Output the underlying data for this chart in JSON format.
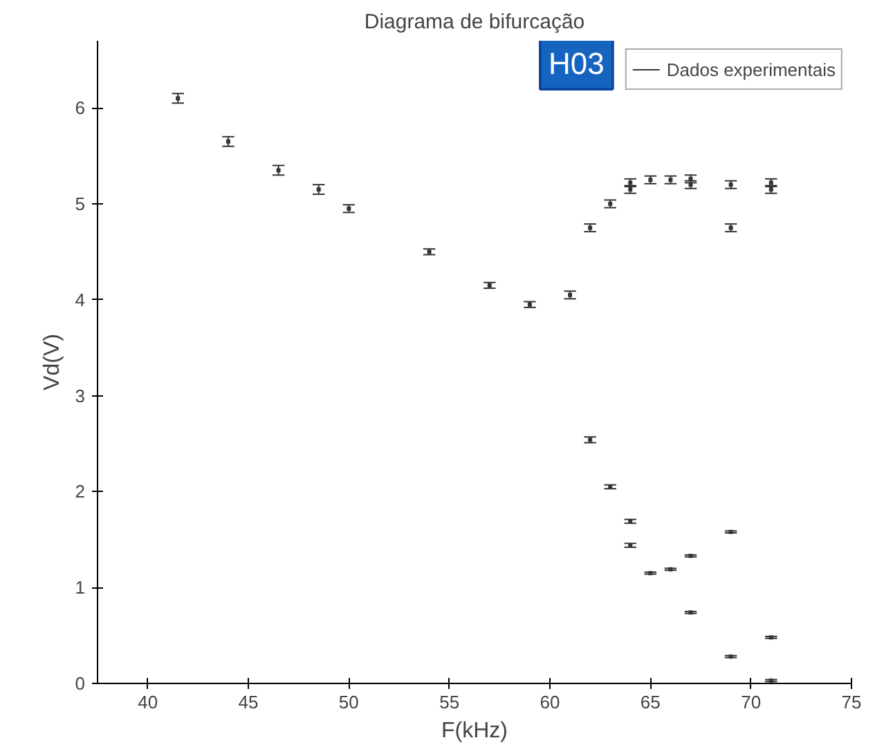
{
  "chart_data": {
    "type": "scatter",
    "title": "Diagrama de bifurcação",
    "xlabel": "F(kHz)",
    "ylabel": "Vd(V)",
    "xlim": [
      37.5,
      75
    ],
    "ylim": [
      0,
      6.7
    ],
    "xticks": [
      40,
      45,
      50,
      55,
      60,
      65,
      70,
      75
    ],
    "yticks": [
      0,
      1,
      2,
      3,
      4,
      5,
      6
    ],
    "grid": false,
    "legend": "top right",
    "marker": "square",
    "annotations": [
      "H03"
    ],
    "series": [
      {
        "name": "Dados experimentais",
        "color": "#333333",
        "x": [
          41.5,
          44,
          46.5,
          48.5,
          50,
          54,
          57,
          59,
          61,
          62,
          63,
          64,
          64,
          65,
          66,
          67,
          67,
          69,
          69,
          71,
          71,
          62,
          63,
          64,
          64,
          65,
          66,
          67,
          67,
          69,
          69,
          71,
          71
        ],
        "values": [
          6.1,
          5.65,
          5.35,
          5.15,
          4.95,
          4.5,
          4.15,
          3.95,
          4.05,
          4.75,
          5.0,
          5.15,
          5.22,
          5.25,
          5.25,
          5.2,
          5.26,
          5.2,
          4.75,
          5.15,
          5.22,
          2.54,
          2.05,
          1.69,
          1.44,
          1.15,
          1.19,
          1.33,
          0.74,
          1.58,
          0.28,
          0.48,
          0.03
        ],
        "errors": [
          0.05,
          0.05,
          0.05,
          0.05,
          0.04,
          0.03,
          0.03,
          0.03,
          0.04,
          0.04,
          0.04,
          0.04,
          0.04,
          0.04,
          0.04,
          0.04,
          0.04,
          0.04,
          0.04,
          0.04,
          0.04,
          0.03,
          0.02,
          0.02,
          0.02,
          0.01,
          0.01,
          0.01,
          0.01,
          0.01,
          0.01,
          0.01,
          0.01
        ]
      }
    ]
  }
}
